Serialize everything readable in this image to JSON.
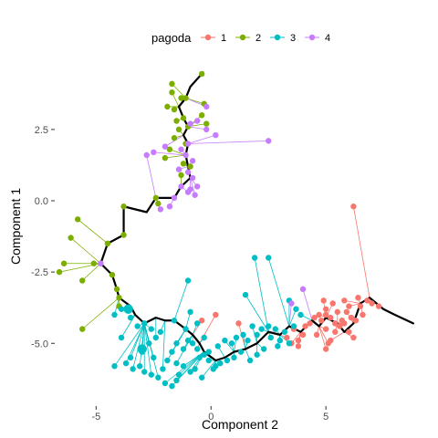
{
  "chart_data": {
    "type": "scatter",
    "xlabel": "Component 2",
    "ylabel": "Component 1",
    "xlim": [
      -6.8,
      9.4
    ],
    "ylim": [
      -7.2,
      4.8
    ],
    "xticks": [
      -5,
      0,
      5
    ],
    "yticks": [
      2.5,
      0.0,
      -2.5,
      -5.0
    ],
    "xtick_labels": [
      "-5",
      "0",
      "5"
    ],
    "ytick_labels": [
      "2.5",
      "0.0",
      "-2.5",
      "-5.0"
    ],
    "grid": false,
    "legend": {
      "title": "pagoda",
      "placement": "top",
      "entries": [
        {
          "label": "1",
          "color": "#F8766D"
        },
        {
          "label": "2",
          "color": "#7CAE00"
        },
        {
          "label": "3",
          "color": "#00BFC4"
        },
        {
          "label": "4",
          "color": "#C77CFF"
        }
      ]
    },
    "trajectory": {
      "color": "#000000",
      "points": [
        [
          -0.4,
          4.45
        ],
        [
          -0.9,
          4.0
        ],
        [
          -1.1,
          3.6
        ],
        [
          -1.4,
          3.3
        ],
        [
          -1.2,
          2.9
        ],
        [
          -1.0,
          2.6
        ],
        [
          -1.2,
          2.3
        ],
        [
          -1.0,
          2.0
        ],
        [
          -1.1,
          1.6
        ],
        [
          -1.0,
          1.2
        ],
        [
          -0.9,
          0.8
        ],
        [
          -1.3,
          0.5
        ],
        [
          -1.6,
          0.1
        ],
        [
          -2.4,
          0.1
        ],
        [
          -2.8,
          -0.4
        ],
        [
          -3.8,
          -0.2
        ],
        [
          -3.8,
          -1.2
        ],
        [
          -4.5,
          -1.5
        ],
        [
          -4.8,
          -2.2
        ],
        [
          -4.3,
          -2.6
        ],
        [
          -4.1,
          -3.1
        ],
        [
          -4.0,
          -3.4
        ],
        [
          -3.5,
          -3.7
        ],
        [
          -3.3,
          -4.0
        ],
        [
          -2.9,
          -4.3
        ],
        [
          -2.4,
          -4.1
        ],
        [
          -2.0,
          -4.2
        ],
        [
          -1.6,
          -4.2
        ],
        [
          -1.1,
          -4.5
        ],
        [
          -0.8,
          -4.7
        ],
        [
          -0.5,
          -5.0
        ],
        [
          -0.3,
          -5.3
        ],
        [
          0.2,
          -5.6
        ],
        [
          0.6,
          -5.5
        ],
        [
          1.0,
          -5.3
        ],
        [
          1.5,
          -5.2
        ],
        [
          2.0,
          -5.0
        ],
        [
          2.5,
          -4.6
        ],
        [
          3.0,
          -4.7
        ],
        [
          3.4,
          -4.4
        ],
        [
          3.9,
          -4.6
        ],
        [
          4.4,
          -4.2
        ],
        [
          4.7,
          -4.4
        ],
        [
          5.0,
          -4.1
        ],
        [
          5.5,
          -4.3
        ],
        [
          5.8,
          -4.6
        ],
        [
          6.2,
          -4.3
        ],
        [
          6.5,
          -3.6
        ],
        [
          6.9,
          -3.4
        ],
        [
          7.2,
          -3.6
        ],
        [
          7.5,
          -3.8
        ],
        [
          8.0,
          -4.0
        ],
        [
          8.8,
          -4.3
        ]
      ]
    },
    "series": [
      {
        "name": "1",
        "color": "#F8766D",
        "points": [
          [
            6.2,
            -0.2
          ],
          [
            5.3,
            -3.6
          ],
          [
            5.0,
            -3.8
          ],
          [
            4.8,
            -4.2
          ],
          [
            5.0,
            -4.0
          ],
          [
            5.2,
            -4.1
          ],
          [
            5.4,
            -4.3
          ],
          [
            5.6,
            -4.4
          ],
          [
            5.8,
            -4.3
          ],
          [
            6.0,
            -4.6
          ],
          [
            6.2,
            -4.8
          ],
          [
            5.5,
            -3.9
          ],
          [
            5.8,
            -3.5
          ],
          [
            6.0,
            -3.7
          ],
          [
            5.4,
            -4.6
          ],
          [
            5.2,
            -4.9
          ],
          [
            5.0,
            -4.5
          ],
          [
            4.5,
            -4.1
          ],
          [
            4.3,
            -4.3
          ],
          [
            4.6,
            -4.7
          ],
          [
            4.0,
            -4.7
          ],
          [
            3.8,
            -4.9
          ],
          [
            3.5,
            -5.0
          ],
          [
            3.3,
            -4.8
          ],
          [
            3.6,
            -4.5
          ],
          [
            4.1,
            -4.4
          ],
          [
            6.5,
            -3.7
          ],
          [
            6.8,
            -3.5
          ],
          [
            7.0,
            -3.6
          ],
          [
            7.3,
            -3.7
          ],
          [
            6.3,
            -4.2
          ],
          [
            6.6,
            -4.0
          ],
          [
            5.1,
            -5.0
          ],
          [
            5.0,
            -5.2
          ],
          [
            4.9,
            -3.5
          ],
          [
            5.7,
            -4.2
          ],
          [
            4.7,
            -4.0
          ],
          [
            6.1,
            -4.1
          ],
          [
            5.9,
            -3.9
          ],
          [
            1.2,
            -4.3
          ],
          [
            0.2,
            -4.0
          ],
          [
            -0.4,
            -4.2
          ],
          [
            3.8,
            -5.1
          ],
          [
            6.4,
            -3.4
          ]
        ]
      },
      {
        "name": "2",
        "color": "#7CAE00",
        "points": [
          [
            -0.4,
            4.45
          ],
          [
            -1.7,
            4.1
          ],
          [
            -1.7,
            3.8
          ],
          [
            -1.3,
            3.6
          ],
          [
            -1.1,
            3.6
          ],
          [
            -1.9,
            3.3
          ],
          [
            -1.6,
            3.2
          ],
          [
            -1.5,
            2.8
          ],
          [
            -1.2,
            2.9
          ],
          [
            -1.0,
            2.6
          ],
          [
            -0.4,
            3.0
          ],
          [
            -0.2,
            2.7
          ],
          [
            -0.3,
            3.4
          ],
          [
            -1.4,
            2.5
          ],
          [
            -1.6,
            2.2
          ],
          [
            -1.1,
            2.0
          ],
          [
            -1.8,
            1.8
          ],
          [
            -2.0,
            1.5
          ],
          [
            -1.2,
            1.3
          ],
          [
            -0.9,
            1.2
          ],
          [
            -1.3,
            0.9
          ],
          [
            -2.4,
            0.1
          ],
          [
            -2.3,
            -0.1
          ],
          [
            -3.8,
            -0.2
          ],
          [
            -3.8,
            -1.2
          ],
          [
            -4.5,
            -1.5
          ],
          [
            -4.8,
            -2.2
          ],
          [
            -5.8,
            -0.65
          ],
          [
            -6.1,
            -1.3
          ],
          [
            -6.4,
            -2.2
          ],
          [
            -6.6,
            -2.5
          ],
          [
            -5.6,
            -2.8
          ],
          [
            -5.1,
            -2.2
          ],
          [
            -4.3,
            -2.6
          ],
          [
            -4.1,
            -3.1
          ],
          [
            -4.0,
            -3.4
          ],
          [
            -5.6,
            -4.5
          ],
          [
            -4.0,
            -3.7
          ]
        ]
      },
      {
        "name": "3",
        "color": "#00BFC4",
        "points": [
          [
            1.9,
            -2.0
          ],
          [
            2.5,
            -2.0
          ],
          [
            3.4,
            -3.5
          ],
          [
            3.7,
            -3.8
          ],
          [
            3.9,
            -4.0
          ],
          [
            2.5,
            -4.4
          ],
          [
            3.2,
            -4.6
          ],
          [
            3.4,
            -5.0
          ],
          [
            2.9,
            -5.1
          ],
          [
            2.3,
            -5.2
          ],
          [
            2.0,
            -5.4
          ],
          [
            1.7,
            -5.6
          ],
          [
            1.3,
            -5.3
          ],
          [
            1.0,
            -5.5
          ],
          [
            0.7,
            -5.6
          ],
          [
            0.4,
            -5.7
          ],
          [
            0.2,
            -5.8
          ],
          [
            -0.1,
            -5.6
          ],
          [
            -0.3,
            -5.4
          ],
          [
            -0.6,
            -5.2
          ],
          [
            -0.8,
            -5.0
          ],
          [
            -1.0,
            -4.9
          ],
          [
            -1.2,
            -5.2
          ],
          [
            -1.5,
            -5.0
          ],
          [
            -1.7,
            -5.3
          ],
          [
            -1.9,
            -5.6
          ],
          [
            -2.1,
            -5.9
          ],
          [
            -2.3,
            -6.2
          ],
          [
            -2.0,
            -6.4
          ],
          [
            -1.7,
            -6.5
          ],
          [
            -1.5,
            -6.3
          ],
          [
            -2.6,
            -6.1
          ],
          [
            -2.9,
            -6.0
          ],
          [
            -3.1,
            -5.8
          ],
          [
            -3.4,
            -5.9
          ],
          [
            -3.7,
            -5.7
          ],
          [
            -4.2,
            -5.8
          ],
          [
            -3.5,
            -5.5
          ],
          [
            -3.0,
            -5.2
          ],
          [
            -2.7,
            -5.0
          ],
          [
            -2.4,
            -4.8
          ],
          [
            -2.2,
            -4.6
          ],
          [
            -3.2,
            -4.4
          ],
          [
            -3.5,
            -4.1
          ],
          [
            -2.9,
            -4.3
          ],
          [
            -2.6,
            -4.5
          ],
          [
            -1.6,
            -4.2
          ],
          [
            -1.1,
            -4.5
          ],
          [
            -0.9,
            -3.9
          ],
          [
            -1.0,
            -2.8
          ],
          [
            -0.6,
            -4.3
          ],
          [
            -0.3,
            -4.8
          ],
          [
            -0.5,
            -5.5
          ],
          [
            -0.1,
            -5.3
          ],
          [
            0.3,
            -5.1
          ],
          [
            0.6,
            -4.9
          ],
          [
            0.9,
            -5.0
          ],
          [
            1.1,
            -4.8
          ],
          [
            1.4,
            -4.7
          ],
          [
            1.6,
            -4.9
          ],
          [
            1.8,
            -4.4
          ],
          [
            2.0,
            -4.7
          ],
          [
            2.2,
            -4.5
          ],
          [
            2.6,
            -4.8
          ],
          [
            2.8,
            -4.5
          ],
          [
            3.0,
            -4.9
          ],
          [
            3.6,
            -4.4
          ],
          [
            1.5,
            -3.3
          ],
          [
            -1.5,
            -5.7
          ],
          [
            -1.2,
            -5.8
          ],
          [
            -0.9,
            -6.0
          ],
          [
            -0.7,
            -5.9
          ],
          [
            -3.9,
            -3.8
          ],
          [
            -4.2,
            -4.0
          ],
          [
            -3.9,
            -4.8
          ],
          [
            -3.0,
            -5.3
          ],
          [
            -1.4,
            -6.1
          ],
          [
            -2.5,
            -5.5
          ],
          [
            -0.4,
            -6.2
          ],
          [
            0.1,
            -5.9
          ]
        ]
      },
      {
        "name": "4",
        "color": "#C77CFF",
        "points": [
          [
            -0.2,
            3.3
          ],
          [
            -0.2,
            2.5
          ],
          [
            0.2,
            2.3
          ],
          [
            2.5,
            2.1
          ],
          [
            -0.6,
            2.8
          ],
          [
            -0.9,
            2.7
          ],
          [
            -1.0,
            2.0
          ],
          [
            -1.1,
            1.6
          ],
          [
            -2.8,
            1.6
          ],
          [
            -2.5,
            1.7
          ],
          [
            -1.3,
            1.8
          ],
          [
            -1.0,
            1.0
          ],
          [
            -0.8,
            0.8
          ],
          [
            -0.6,
            0.5
          ],
          [
            -0.9,
            0.4
          ],
          [
            -1.3,
            0.5
          ],
          [
            -1.6,
            0.1
          ],
          [
            -2.2,
            -0.3
          ],
          [
            -1.8,
            -0.2
          ],
          [
            -1.0,
            0.3
          ],
          [
            -0.7,
            0.2
          ],
          [
            -0.8,
            1.4
          ],
          [
            -1.4,
            1.1
          ],
          [
            -2.0,
            1.9
          ],
          [
            -4.8,
            -2.2
          ],
          [
            3.5,
            -3.6
          ],
          [
            4.0,
            -3.1
          ]
        ]
      }
    ],
    "large_markers": [
      {
        "series": "3",
        "x": -3.0,
        "y": -5.2
      },
      {
        "series": "3",
        "x": -3.6,
        "y": -3.8
      }
    ]
  }
}
